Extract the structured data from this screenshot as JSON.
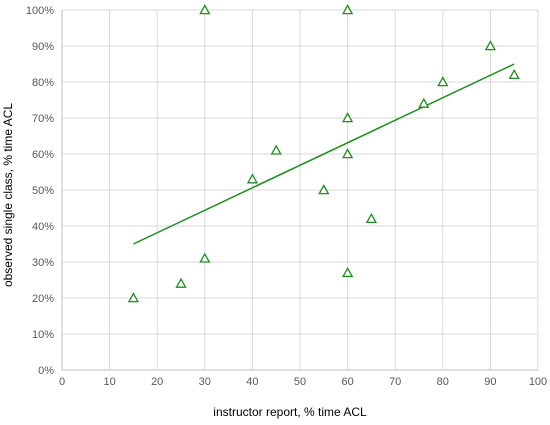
{
  "chart_data": {
    "type": "scatter",
    "title": "",
    "xlabel": "instructor report, % time ACL",
    "ylabel": "observed single class, % time ACL",
    "xlim": [
      0,
      100
    ],
    "ylim": [
      0,
      100
    ],
    "x_ticks": [
      "0",
      "10",
      "20",
      "30",
      "40",
      "50",
      "60",
      "70",
      "80",
      "90",
      "100"
    ],
    "y_ticks": [
      "0%",
      "10%",
      "20%",
      "30%",
      "40%",
      "50%",
      "60%",
      "70%",
      "80%",
      "90%",
      "100%"
    ],
    "x_tick_values": [
      0,
      10,
      20,
      30,
      40,
      50,
      60,
      70,
      80,
      90,
      100
    ],
    "y_tick_values": [
      0,
      10,
      20,
      30,
      40,
      50,
      60,
      70,
      80,
      90,
      100
    ],
    "grid": true,
    "legend": "none",
    "marker": "open-triangle",
    "colors": {
      "points": "#1a8f1a",
      "trendline": "#1a8f1a",
      "grid": "#d9d9d9",
      "axis": "#bfbfbf"
    },
    "series": [
      {
        "points": [
          {
            "x": 15,
            "y": 20
          },
          {
            "x": 25,
            "y": 24
          },
          {
            "x": 30,
            "y": 31
          },
          {
            "x": 30,
            "y": 100
          },
          {
            "x": 40,
            "y": 53
          },
          {
            "x": 45,
            "y": 61
          },
          {
            "x": 55,
            "y": 50
          },
          {
            "x": 60,
            "y": 100
          },
          {
            "x": 60,
            "y": 70
          },
          {
            "x": 60,
            "y": 60
          },
          {
            "x": 60,
            "y": 27
          },
          {
            "x": 65,
            "y": 42
          },
          {
            "x": 76,
            "y": 74
          },
          {
            "x": 80,
            "y": 80
          },
          {
            "x": 90,
            "y": 90
          },
          {
            "x": 95,
            "y": 82
          }
        ]
      }
    ],
    "trendline": {
      "type": "linear",
      "from": {
        "x": 15,
        "y": 35
      },
      "to": {
        "x": 95,
        "y": 85
      }
    }
  }
}
